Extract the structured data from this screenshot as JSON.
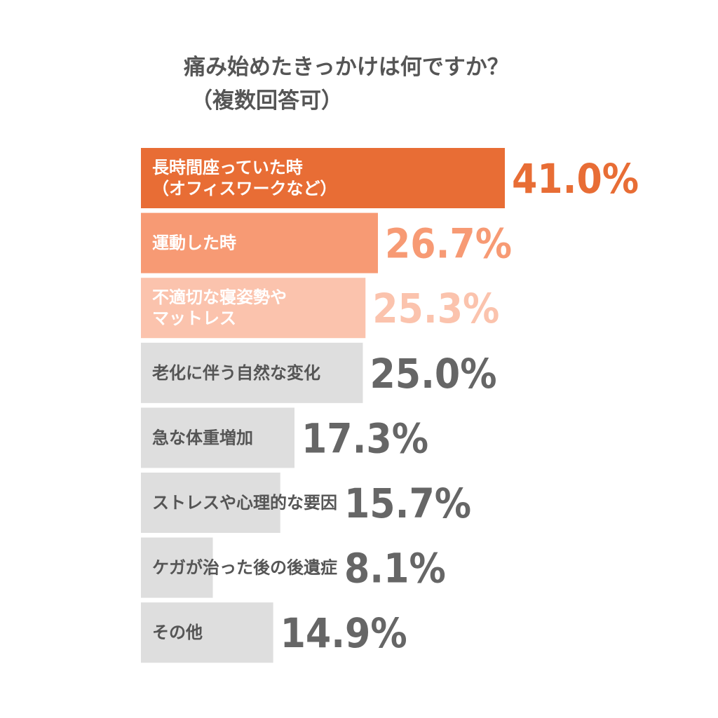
{
  "chart_data": {
    "type": "bar",
    "orientation": "horizontal",
    "title_lines": [
      "痛み始めたきっかけは何ですか？",
      "（複数回答可）"
    ],
    "categories": [
      [
        "長時間座っていた時",
        "（オフィスワークなど）"
      ],
      [
        "運動した時"
      ],
      [
        "不適切な寝姿勢や",
        "マットレス"
      ],
      [
        "老化に伴う自然な変化"
      ],
      [
        "急な体重増加"
      ],
      [
        "ストレスや心理的な要因"
      ],
      [
        "ケガが治った後の後遺症"
      ],
      [
        "その他"
      ]
    ],
    "values": [
      41.0,
      26.7,
      25.3,
      25.0,
      17.3,
      15.7,
      8.1,
      14.9
    ],
    "value_labels": [
      "41.0%",
      "26.7%",
      "25.3%",
      "25.0%",
      "17.3%",
      "15.7%",
      "8.1%",
      "14.9%"
    ],
    "xlim": [
      0,
      41.0
    ],
    "grid": false,
    "colors": {
      "bars": [
        "#e86d35",
        "#f79a74",
        "#fbc3ad",
        "#dedede",
        "#dedede",
        "#dedede",
        "#dedede",
        "#dedede"
      ],
      "bar_labels": [
        "#ffffff",
        "#ffffff",
        "#ffffff",
        "#555555",
        "#555555",
        "#555555",
        "#555555",
        "#555555"
      ],
      "value_labels": [
        "#e86d35",
        "#f79a74",
        "#fbc3ad",
        "#666666",
        "#666666",
        "#666666",
        "#666666",
        "#666666"
      ]
    }
  }
}
